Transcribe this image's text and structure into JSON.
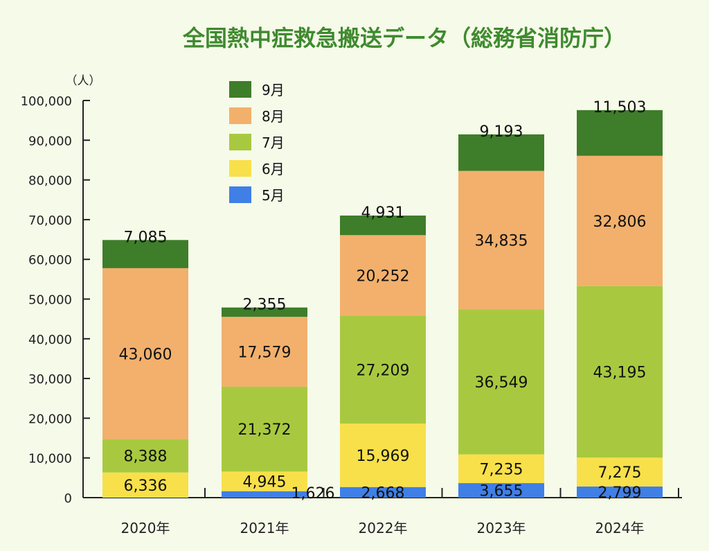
{
  "chart_data": {
    "type": "bar",
    "stacked": true,
    "title": "全国熱中症救急搬送データ（総務省消防庁）",
    "y_unit": "（人）",
    "ylim": [
      0,
      100000
    ],
    "yticks": [
      "0",
      "10,000",
      "20,000",
      "30,000",
      "40,000",
      "50,000",
      "60,000",
      "70,000",
      "80,000",
      "90,000",
      "100,000"
    ],
    "categories": [
      "2020年",
      "2021年",
      "2022年",
      "2023年",
      "2024年"
    ],
    "legend_position": "top-left inside plot",
    "series": [
      {
        "name": "5月",
        "color": "#3f7fe6",
        "values": [
          0,
          1626,
          2668,
          3655,
          2799
        ],
        "labels": [
          null,
          "1,626",
          "2,668",
          "3,655",
          "2,799"
        ]
      },
      {
        "name": "6月",
        "color": "#f8e04a",
        "values": [
          6336,
          4945,
          15969,
          7235,
          7275
        ],
        "labels": [
          "6,336",
          "4,945",
          "15,969",
          "7,235",
          "7,275"
        ]
      },
      {
        "name": "7月",
        "color": "#a8c93f",
        "values": [
          8388,
          21372,
          27209,
          36549,
          43195
        ],
        "labels": [
          "8,388",
          "21,372",
          "27,209",
          "36,549",
          "43,195"
        ]
      },
      {
        "name": "8月",
        "color": "#f2b06c",
        "values": [
          43060,
          17579,
          20252,
          34835,
          32806
        ],
        "labels": [
          "43,060",
          "17,579",
          "20,252",
          "34,835",
          "32,806"
        ]
      },
      {
        "name": "9月",
        "color": "#3e7d2a",
        "values": [
          7085,
          2355,
          4931,
          9193,
          11503
        ],
        "labels": [
          "7,085",
          "2,355",
          "4,931",
          "9,193",
          "11,503"
        ]
      }
    ]
  }
}
